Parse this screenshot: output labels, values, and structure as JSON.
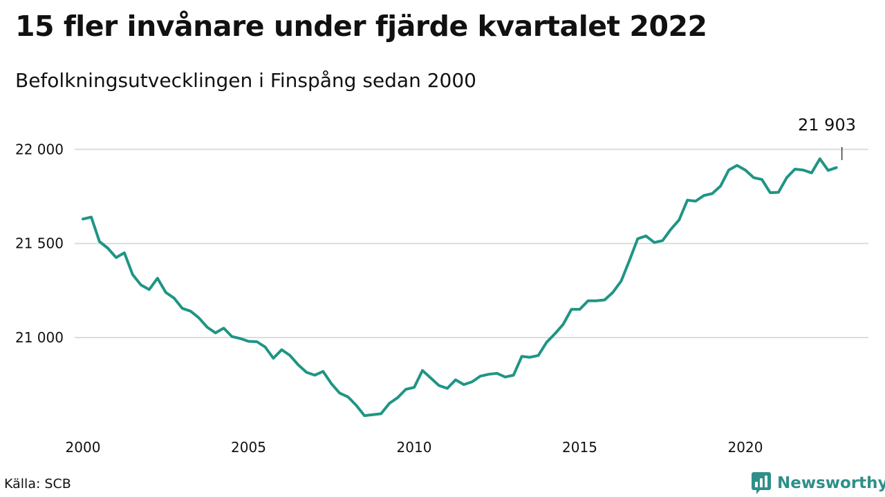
{
  "title": "15 fler invånare under fjärde kvartalet 2022",
  "subtitle": "Befolkningsutvecklingen i Finspång sedan 2000",
  "source": "Källa: SCB",
  "brand": {
    "name": "Newsworthy",
    "icon": "newsworthy-logo-icon",
    "color": "#2f8f89"
  },
  "chart_data": {
    "type": "line",
    "title": "15 fler invånare under fjärde kvartalet 2022",
    "subtitle": "Befolkningsutvecklingen i Finspång sedan 2000",
    "xlabel": "",
    "ylabel": "",
    "x_ticks": [
      2000,
      2005,
      2010,
      2015,
      2020
    ],
    "x_tick_labels": [
      "2000",
      "2005",
      "2010",
      "2015",
      "2020"
    ],
    "y_ticks": [
      21000,
      21500,
      22000
    ],
    "y_tick_labels": [
      "21 000",
      "21 500",
      "22 000"
    ],
    "xlim": [
      2000,
      2023
    ],
    "ylim": [
      20550,
      22100
    ],
    "grid": true,
    "legend": "none",
    "color": "#1f9584",
    "annotation": {
      "label": "21 903",
      "x": 2023,
      "y": 21903
    },
    "series": [
      {
        "values": [
          [
            2000.0,
            21630
          ],
          [
            2000.25,
            21640
          ],
          [
            2000.5,
            21510
          ],
          [
            2000.75,
            21475
          ],
          [
            2001.0,
            21425
          ],
          [
            2001.25,
            21450
          ],
          [
            2001.5,
            21335
          ],
          [
            2001.75,
            21280
          ],
          [
            2002.0,
            21255
          ],
          [
            2002.25,
            21315
          ],
          [
            2002.5,
            21240
          ],
          [
            2002.75,
            21210
          ],
          [
            2003.0,
            21155
          ],
          [
            2003.25,
            21140
          ],
          [
            2003.5,
            21105
          ],
          [
            2003.75,
            21055
          ],
          [
            2004.0,
            21025
          ],
          [
            2004.25,
            21050
          ],
          [
            2004.5,
            21005
          ],
          [
            2004.75,
            20995
          ],
          [
            2005.0,
            20980
          ],
          [
            2005.25,
            20978
          ],
          [
            2005.5,
            20950
          ],
          [
            2005.75,
            20890
          ],
          [
            2006.0,
            20935
          ],
          [
            2006.25,
            20905
          ],
          [
            2006.5,
            20855
          ],
          [
            2006.75,
            20815
          ],
          [
            2007.0,
            20800
          ],
          [
            2007.25,
            20820
          ],
          [
            2007.5,
            20755
          ],
          [
            2007.75,
            20705
          ],
          [
            2008.0,
            20685
          ],
          [
            2008.25,
            20640
          ],
          [
            2008.5,
            20585
          ],
          [
            2008.75,
            20590
          ],
          [
            2009.0,
            20595
          ],
          [
            2009.25,
            20650
          ],
          [
            2009.5,
            20680
          ],
          [
            2009.75,
            20725
          ],
          [
            2010.0,
            20735
          ],
          [
            2010.25,
            20825
          ],
          [
            2010.5,
            20785
          ],
          [
            2010.75,
            20745
          ],
          [
            2011.0,
            20730
          ],
          [
            2011.25,
            20775
          ],
          [
            2011.5,
            20750
          ],
          [
            2011.75,
            20765
          ],
          [
            2012.0,
            20795
          ],
          [
            2012.25,
            20805
          ],
          [
            2012.5,
            20810
          ],
          [
            2012.75,
            20790
          ],
          [
            2013.0,
            20800
          ],
          [
            2013.25,
            20900
          ],
          [
            2013.5,
            20895
          ],
          [
            2013.75,
            20905
          ],
          [
            2014.0,
            20975
          ],
          [
            2014.25,
            21020
          ],
          [
            2014.5,
            21070
          ],
          [
            2014.75,
            21150
          ],
          [
            2015.0,
            21150
          ],
          [
            2015.25,
            21195
          ],
          [
            2015.5,
            21195
          ],
          [
            2015.75,
            21200
          ],
          [
            2016.0,
            21240
          ],
          [
            2016.25,
            21300
          ],
          [
            2016.5,
            21410
          ],
          [
            2016.75,
            21525
          ],
          [
            2017.0,
            21540
          ],
          [
            2017.25,
            21505
          ],
          [
            2017.5,
            21515
          ],
          [
            2017.75,
            21575
          ],
          [
            2018.0,
            21625
          ],
          [
            2018.25,
            21730
          ],
          [
            2018.5,
            21725
          ],
          [
            2018.75,
            21755
          ],
          [
            2019.0,
            21765
          ],
          [
            2019.25,
            21805
          ],
          [
            2019.5,
            21890
          ],
          [
            2019.75,
            21915
          ],
          [
            2020.0,
            21890
          ],
          [
            2020.25,
            21850
          ],
          [
            2020.5,
            21840
          ],
          [
            2020.75,
            21770
          ],
          [
            2021.0,
            21772
          ],
          [
            2021.25,
            21850
          ],
          [
            2021.5,
            21895
          ],
          [
            2021.75,
            21890
          ],
          [
            2022.0,
            21875
          ],
          [
            2022.25,
            21950
          ],
          [
            2022.5,
            21888
          ],
          [
            2022.75,
            21903
          ]
        ]
      }
    ]
  }
}
